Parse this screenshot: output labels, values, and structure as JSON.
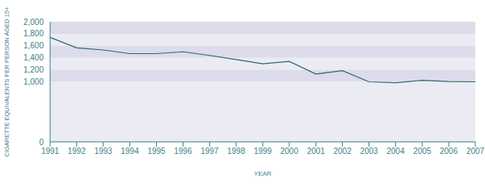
{
  "chart_data": {
    "type": "line",
    "x_label": "YEAR",
    "y_label": "CIGARETTE EQUIVALENTS PER PERSON AGED 15+",
    "categories": [
      "1991",
      "1992",
      "1993",
      "1994",
      "1995",
      "1996",
      "1997",
      "1998",
      "1999",
      "2000",
      "2001",
      "2002",
      "2003",
      "2004",
      "2005",
      "2006",
      "2007"
    ],
    "values": [
      1740,
      1565,
      1530,
      1470,
      1470,
      1500,
      1440,
      1370,
      1300,
      1340,
      1130,
      1185,
      1000,
      985,
      1025,
      1005,
      1000
    ],
    "color": "#2e6b73",
    "ylim": [
      0,
      2000
    ],
    "yticks": [
      0,
      {
        "value": 1000,
        "label": "1,000"
      },
      {
        "value": 1200,
        "label": "1,200"
      },
      {
        "value": 1400,
        "label": "1,400"
      },
      {
        "value": 1600,
        "label": "1,600"
      },
      {
        "value": 1800,
        "label": "1,800"
      },
      {
        "value": 2000,
        "label": "2,000"
      }
    ],
    "grid": true
  }
}
